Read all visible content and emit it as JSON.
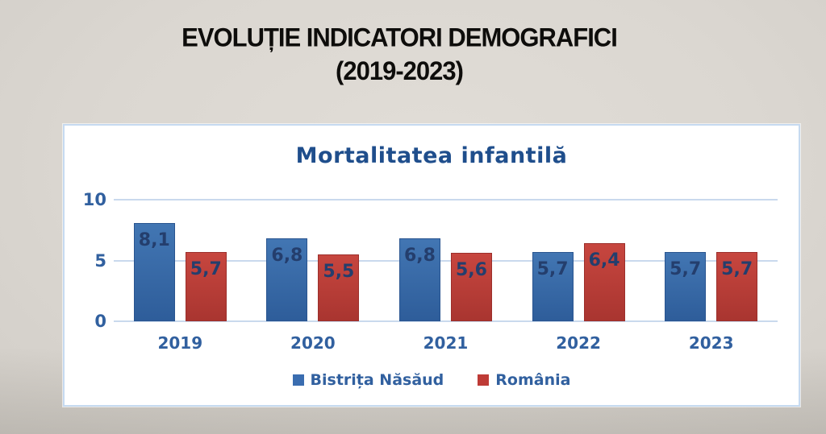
{
  "slide": {
    "title_line1": "EVOLUȚIE INDICATORI DEMOGRAFICI",
    "title_line2": "(2019-2023)"
  },
  "chart_data": {
    "type": "bar",
    "title": "Mortalitatea infantilă",
    "categories": [
      "2019",
      "2020",
      "2021",
      "2022",
      "2023"
    ],
    "series": [
      {
        "name": "Bistrița Năsăud",
        "values": [
          8.1,
          6.8,
          6.8,
          5.7,
          5.7
        ],
        "value_labels": [
          "8,1",
          "6,8",
          "6,8",
          "5,7",
          "5,7"
        ],
        "color_top": "#4276b3",
        "color_bottom": "#2e5d9a",
        "border_color": "#2a5590",
        "legend_color": "#3a6db0"
      },
      {
        "name": "România",
        "values": [
          5.7,
          5.5,
          5.6,
          6.4,
          5.7
        ],
        "value_labels": [
          "5,7",
          "5,5",
          "5,6",
          "6,4",
          "5,7"
        ],
        "color_top": "#c7463f",
        "color_bottom": "#a93530",
        "border_color": "#9c2f2b",
        "legend_color": "#be3b36"
      }
    ],
    "ylim": [
      0,
      10
    ],
    "yticks": [
      0,
      5,
      10
    ],
    "grid": true,
    "legend_position": "bottom",
    "value_label_color": "#243e6d"
  }
}
